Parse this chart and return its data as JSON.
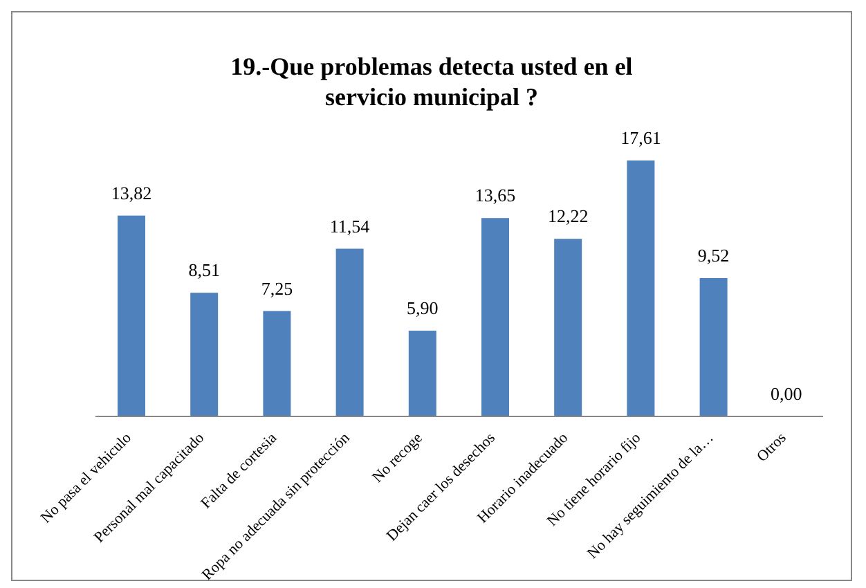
{
  "chart_data": {
    "type": "bar",
    "title": "19.-Que problemas detecta usted en el servicio municipal ?",
    "categories": [
      "No pasa el vehiculo",
      "Personal mal capacitado",
      "Falta de cortesia",
      "Ropa no adecuada sin protección",
      "No recoge",
      "Dejan caer los desechos",
      "Horario inadecuado",
      "No tiene horario fijo",
      "No hay seguimiento de la…",
      "Otros"
    ],
    "values": [
      13.82,
      8.51,
      7.25,
      11.54,
      5.9,
      13.65,
      12.22,
      17.61,
      9.52,
      0
    ],
    "value_labels": [
      "13,82",
      "8,51",
      "7,25",
      "11,54",
      "5,90",
      "13,65",
      "12,22",
      "17,61",
      "9,52",
      "0,00"
    ],
    "color": "#4f81bd",
    "grid": false,
    "legend": false
  }
}
